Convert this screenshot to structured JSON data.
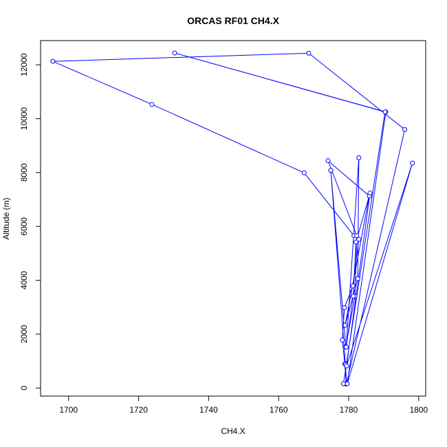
{
  "chart_data": {
    "type": "line",
    "title": "ORCAS RF01 CH4.X",
    "xlabel": "CH4.X",
    "ylabel": "Altitude (m)",
    "xlim": [
      1692,
      1802
    ],
    "ylim": [
      -300,
      12900
    ],
    "x_ticks": [
      1700,
      1720,
      1740,
      1760,
      1780,
      1800
    ],
    "y_ticks": [
      0,
      2000,
      4000,
      6000,
      8000,
      10000,
      12000
    ],
    "grid": false,
    "legend": "none",
    "marker": "open-circle",
    "series": [
      {
        "color": "#0000ff",
        "points": [
          {
            "x": 1779.3,
            "y": 150
          },
          {
            "x": 1778.9,
            "y": 900
          },
          {
            "x": 1778.2,
            "y": 1780
          },
          {
            "x": 1778.8,
            "y": 2980
          },
          {
            "x": 1781.2,
            "y": 3790
          },
          {
            "x": 1782.9,
            "y": 5520
          },
          {
            "x": 1781.5,
            "y": 5660
          },
          {
            "x": 1767.3,
            "y": 7990
          },
          {
            "x": 1723.8,
            "y": 10530
          },
          {
            "x": 1695.5,
            "y": 12130
          },
          {
            "x": 1768.6,
            "y": 12430
          },
          {
            "x": 1796.0,
            "y": 9600
          },
          {
            "x": 1779.4,
            "y": 170
          },
          {
            "x": 1779.1,
            "y": 870
          },
          {
            "x": 1774.9,
            "y": 8080
          },
          {
            "x": 1779.2,
            "y": 1540
          },
          {
            "x": 1781.8,
            "y": 3410
          },
          {
            "x": 1782.3,
            "y": 5660
          },
          {
            "x": 1774.1,
            "y": 8440
          },
          {
            "x": 1785.9,
            "y": 7130
          },
          {
            "x": 1779.0,
            "y": 2330
          },
          {
            "x": 1782.6,
            "y": 4060
          },
          {
            "x": 1782.9,
            "y": 8550
          },
          {
            "x": 1779.3,
            "y": 1520
          },
          {
            "x": 1781.3,
            "y": 3410
          },
          {
            "x": 1782.1,
            "y": 5420
          },
          {
            "x": 1786.1,
            "y": 7240
          },
          {
            "x": 1779.4,
            "y": 820
          },
          {
            "x": 1798.2,
            "y": 8350
          },
          {
            "x": 1779.6,
            "y": 160
          },
          {
            "x": 1790.6,
            "y": 10250
          },
          {
            "x": 1730.3,
            "y": 12440
          },
          {
            "x": 1790.4,
            "y": 10250
          },
          {
            "x": 1778.5,
            "y": 160
          }
        ]
      }
    ]
  }
}
